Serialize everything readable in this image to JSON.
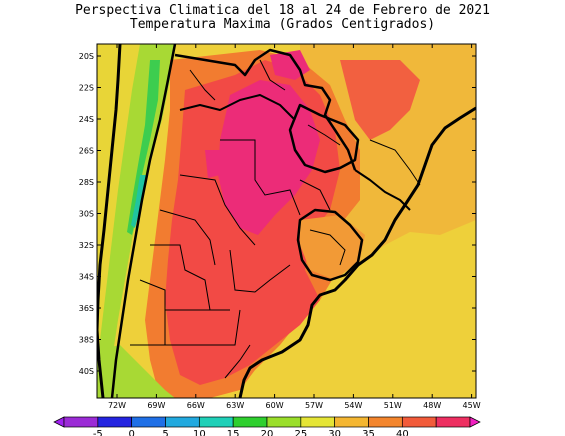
{
  "title_line1": "Perspectiva Climatica del 18 al 24 de Febrero de 2021",
  "title_line2": "Temperatura Maxima (Grados Centigrados)",
  "lat_labels": [
    "20S",
    "22S",
    "24S",
    "26S",
    "28S",
    "30S",
    "32S",
    "34S",
    "36S",
    "38S",
    "40S"
  ],
  "lon_labels": [
    "72W",
    "69W",
    "66W",
    "63W",
    "60W",
    "57W",
    "54W",
    "51W",
    "48W",
    "45W"
  ],
  "colorbar": {
    "ticks": [
      "-5",
      "0",
      "5",
      "10",
      "15",
      "20",
      "25",
      "30",
      "35",
      "40"
    ],
    "colors": [
      "#9b2bd6",
      "#2424e0",
      "#1f6fe6",
      "#21a9df",
      "#1fd0b8",
      "#2ecf2e",
      "#9ade2a",
      "#e5e536",
      "#f4b631",
      "#f3852d",
      "#f25b3a",
      "#ee2f61"
    ],
    "left_arrow_color": "#a020f0",
    "right_arrow_color": "#f020c0"
  },
  "field_colors": {
    "ocean_warm": "#f2c640",
    "ocean_hot": "#f29a36",
    "land_warm": "#f47a30",
    "land_hot": "#f24848",
    "land_max": "#ec2a78",
    "cool": "#a6db35",
    "cold": "#3ccc50",
    "colder": "#19c4a0"
  }
}
